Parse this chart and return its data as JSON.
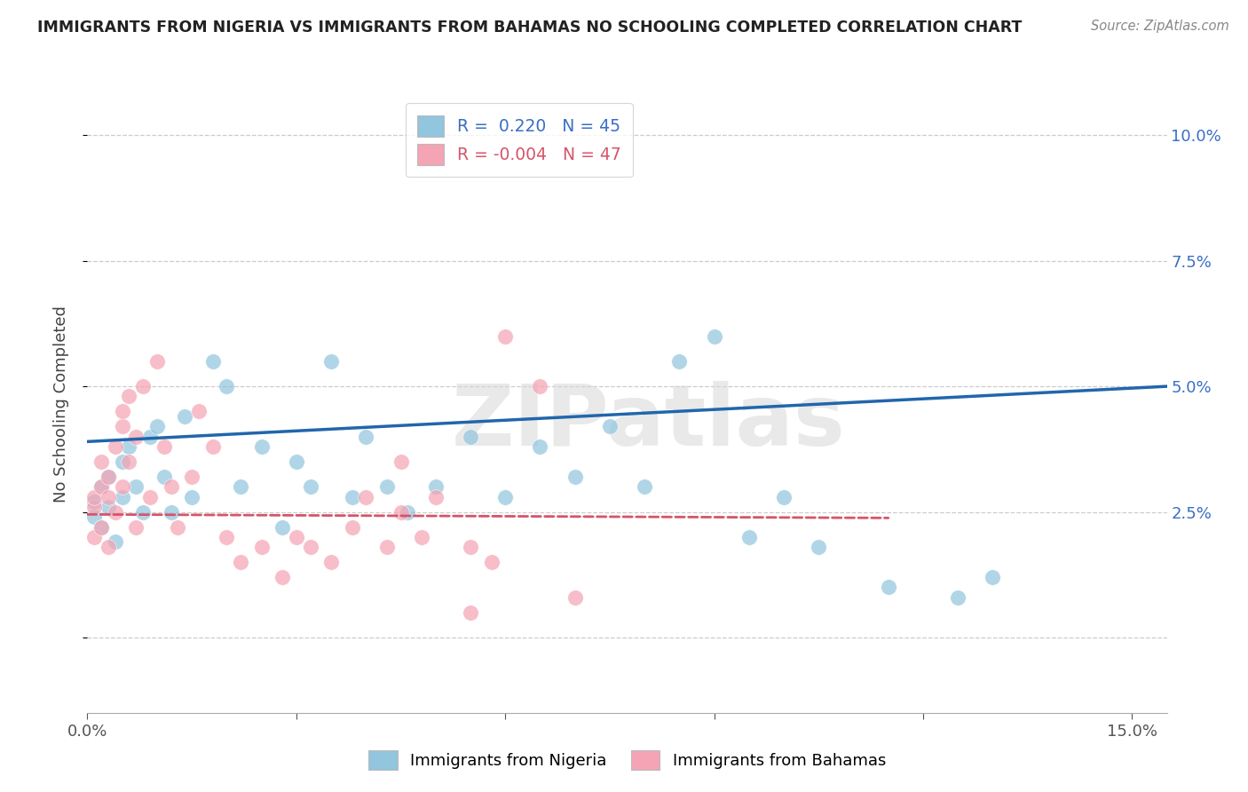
{
  "title": "IMMIGRANTS FROM NIGERIA VS IMMIGRANTS FROM BAHAMAS NO SCHOOLING COMPLETED CORRELATION CHART",
  "source": "Source: ZipAtlas.com",
  "ylabel": "No Schooling Completed",
  "xlim": [
    0.0,
    0.155
  ],
  "ylim": [
    -0.015,
    0.108
  ],
  "xticks": [
    0.0,
    0.03,
    0.06,
    0.09,
    0.12,
    0.15
  ],
  "xtick_labels": [
    "0.0%",
    "",
    "",
    "",
    "",
    "15.0%"
  ],
  "yticks": [
    0.0,
    0.025,
    0.05,
    0.075,
    0.1
  ],
  "right_ytick_labels": [
    "",
    "2.5%",
    "5.0%",
    "7.5%",
    "10.0%"
  ],
  "nigeria_R": 0.22,
  "nigeria_N": 45,
  "bahamas_R": -0.004,
  "bahamas_N": 47,
  "nigeria_color": "#92c5de",
  "bahamas_color": "#f4a4b4",
  "nigeria_line_color": "#2166ac",
  "bahamas_line_color": "#d6546a",
  "nigeria_line_x": [
    0.0,
    0.155
  ],
  "nigeria_line_y": [
    0.039,
    0.05
  ],
  "bahamas_line_x": [
    0.0,
    0.115
  ],
  "bahamas_line_y": [
    0.0245,
    0.0238
  ],
  "watermark": "ZIPatlas",
  "background_color": "#ffffff",
  "grid_color": "#cccccc",
  "nigeria_scatter_x": [
    0.001,
    0.001,
    0.002,
    0.002,
    0.003,
    0.003,
    0.004,
    0.005,
    0.005,
    0.006,
    0.007,
    0.008,
    0.009,
    0.01,
    0.011,
    0.012,
    0.014,
    0.015,
    0.018,
    0.02,
    0.022,
    0.025,
    0.028,
    0.03,
    0.032,
    0.035,
    0.038,
    0.04,
    0.043,
    0.046,
    0.05,
    0.055,
    0.06,
    0.065,
    0.07,
    0.075,
    0.08,
    0.085,
    0.09,
    0.095,
    0.1,
    0.105,
    0.115,
    0.125,
    0.13
  ],
  "nigeria_scatter_y": [
    0.024,
    0.027,
    0.022,
    0.03,
    0.026,
    0.032,
    0.019,
    0.028,
    0.035,
    0.038,
    0.03,
    0.025,
    0.04,
    0.042,
    0.032,
    0.025,
    0.044,
    0.028,
    0.055,
    0.05,
    0.03,
    0.038,
    0.022,
    0.035,
    0.03,
    0.055,
    0.028,
    0.04,
    0.03,
    0.025,
    0.03,
    0.04,
    0.028,
    0.038,
    0.032,
    0.042,
    0.03,
    0.055,
    0.06,
    0.02,
    0.028,
    0.018,
    0.01,
    0.008,
    0.012
  ],
  "bahamas_scatter_x": [
    0.001,
    0.001,
    0.001,
    0.002,
    0.002,
    0.002,
    0.003,
    0.003,
    0.003,
    0.004,
    0.004,
    0.005,
    0.005,
    0.005,
    0.006,
    0.006,
    0.007,
    0.007,
    0.008,
    0.009,
    0.01,
    0.011,
    0.012,
    0.013,
    0.015,
    0.016,
    0.018,
    0.02,
    0.022,
    0.025,
    0.028,
    0.03,
    0.032,
    0.035,
    0.038,
    0.04,
    0.043,
    0.045,
    0.048,
    0.05,
    0.055,
    0.058,
    0.06,
    0.065,
    0.07,
    0.055,
    0.045
  ],
  "bahamas_scatter_y": [
    0.026,
    0.028,
    0.02,
    0.03,
    0.022,
    0.035,
    0.028,
    0.032,
    0.018,
    0.038,
    0.025,
    0.042,
    0.03,
    0.045,
    0.035,
    0.048,
    0.04,
    0.022,
    0.05,
    0.028,
    0.055,
    0.038,
    0.03,
    0.022,
    0.032,
    0.045,
    0.038,
    0.02,
    0.015,
    0.018,
    0.012,
    0.02,
    0.018,
    0.015,
    0.022,
    0.028,
    0.018,
    0.025,
    0.02,
    0.028,
    0.018,
    0.015,
    0.06,
    0.05,
    0.008,
    0.005,
    0.035
  ]
}
